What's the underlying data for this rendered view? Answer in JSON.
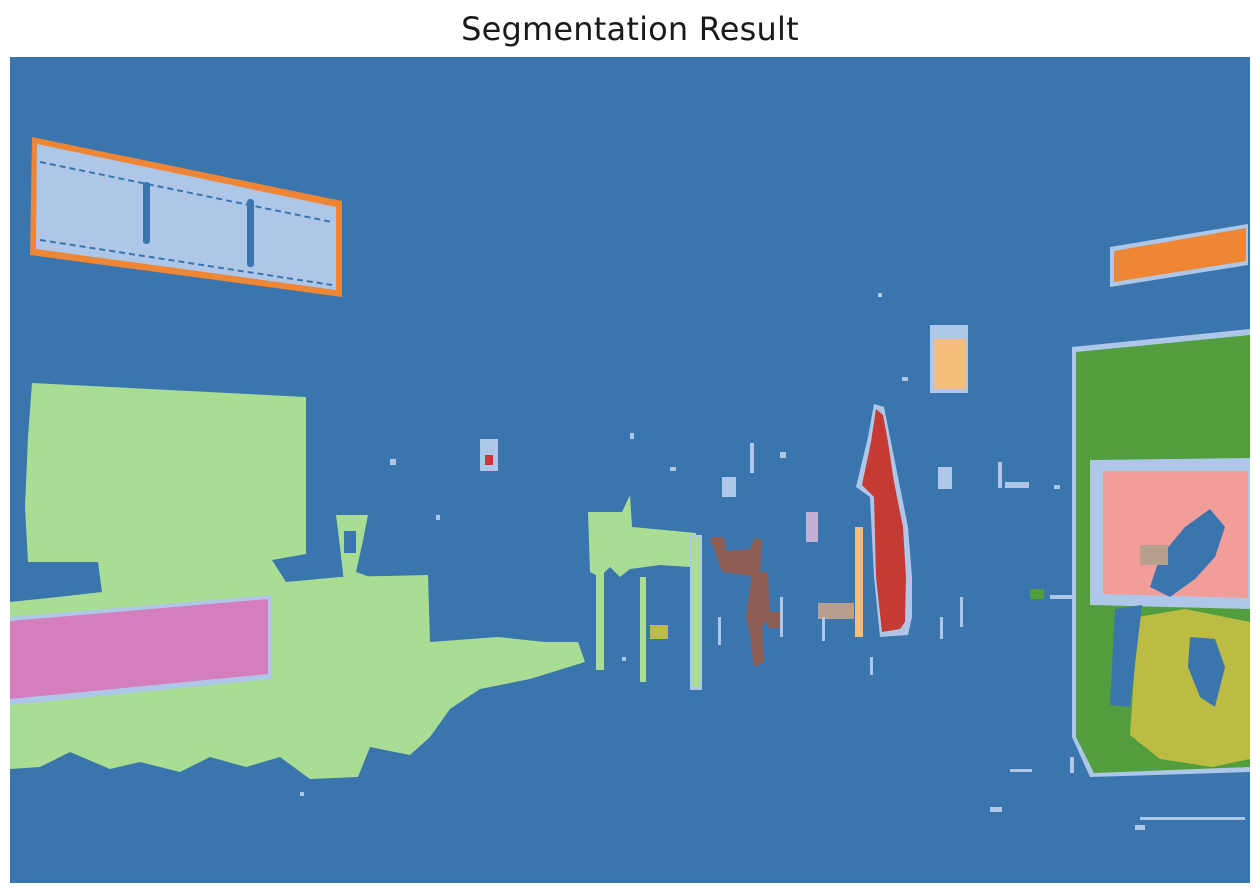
{
  "title": "Segmentation Result",
  "palette": {
    "background": "#3a75ae",
    "light_blue": "#aec7e8",
    "orange": "#ef8636",
    "light_green": "#a9dd93",
    "pink": "#d57ebe",
    "red": "#c53a32",
    "brown": "#8d5d53",
    "green": "#529e3f",
    "salmon": "#f19d99",
    "olive": "#bcbc45",
    "peach": "#f6be7d",
    "lilac": "#c4b0d5",
    "grey_brown": "#b8a08f"
  }
}
